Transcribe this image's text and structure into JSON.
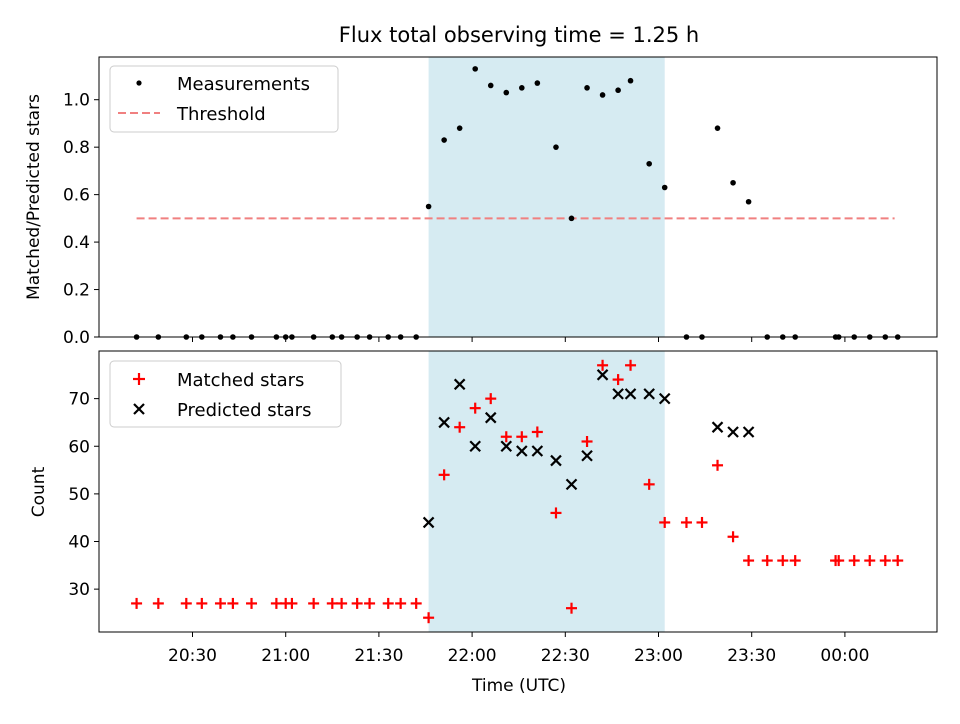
{
  "title": "Flux total observing time = 1.25 h",
  "colors": {
    "band": "#add8e6",
    "threshold": "#f08080",
    "matched": "#ff0000",
    "predicted": "#000000",
    "measurement": "#000000"
  },
  "chart_data": [
    {
      "type": "scatter",
      "ylabel": "Matched/Predicted stars",
      "ylim": [
        0,
        1.18
      ],
      "yticks": [
        "0.0",
        "0.2",
        "0.4",
        "0.6",
        "0.8",
        "1.0"
      ],
      "legend": {
        "placement": "top-left",
        "entries": [
          "Measurements",
          "Threshold"
        ]
      },
      "shaded_interval": [
        "21:46",
        "23:02"
      ],
      "threshold": {
        "name": "Threshold",
        "value": 0.5,
        "x_start": "20:12",
        "x_end": "00:16"
      },
      "series": [
        {
          "name": "Measurements",
          "x": [
            "20:12",
            "20:19",
            "20:28",
            "20:33",
            "20:39",
            "20:43",
            "20:49",
            "20:57",
            "21:00",
            "21:02",
            "21:09",
            "21:15",
            "21:18",
            "21:23",
            "21:27",
            "21:33",
            "21:37",
            "21:42",
            "21:46",
            "21:51",
            "21:56",
            "22:01",
            "22:06",
            "22:11",
            "22:16",
            "22:21",
            "22:27",
            "22:32",
            "22:37",
            "22:42",
            "22:47",
            "22:51",
            "22:57",
            "23:02",
            "23:09",
            "23:14",
            "23:19",
            "23:24",
            "23:29",
            "23:35",
            "23:40",
            "23:44",
            "23:57",
            "23:58",
            "00:03",
            "00:08",
            "00:13",
            "00:17"
          ],
          "y": [
            0,
            0,
            0,
            0,
            0,
            0,
            0,
            0,
            0,
            0,
            0,
            0,
            0,
            0,
            0,
            0,
            0,
            0,
            0.55,
            0.83,
            0.88,
            1.13,
            1.06,
            1.03,
            1.05,
            1.07,
            0.8,
            0.5,
            1.05,
            1.02,
            1.04,
            1.08,
            0.73,
            0.63,
            0,
            0,
            0.88,
            0.65,
            0.57,
            0,
            0,
            0,
            0,
            0,
            0,
            0,
            0,
            0
          ]
        }
      ]
    },
    {
      "type": "scatter",
      "xlabel": "Time (UTC)",
      "ylabel": "Count",
      "ylim": [
        21,
        80
      ],
      "yticks": [
        "30",
        "40",
        "50",
        "60",
        "70"
      ],
      "xticks": [
        "20:30",
        "21:00",
        "21:30",
        "22:00",
        "22:30",
        "23:00",
        "23:30",
        "00:00"
      ],
      "legend": {
        "placement": "top-left",
        "entries": [
          "Matched stars",
          "Predicted stars"
        ]
      },
      "shaded_interval": [
        "21:46",
        "23:02"
      ],
      "series": [
        {
          "name": "Matched stars",
          "marker": "+",
          "x": [
            "20:12",
            "20:19",
            "20:28",
            "20:33",
            "20:39",
            "20:43",
            "20:49",
            "20:57",
            "21:00",
            "21:02",
            "21:09",
            "21:15",
            "21:18",
            "21:23",
            "21:27",
            "21:33",
            "21:37",
            "21:42",
            "21:46",
            "21:51",
            "21:56",
            "22:01",
            "22:06",
            "22:11",
            "22:16",
            "22:21",
            "22:27",
            "22:32",
            "22:37",
            "22:42",
            "22:47",
            "22:51",
            "22:57",
            "23:02",
            "23:09",
            "23:14",
            "23:19",
            "23:24",
            "23:29",
            "23:35",
            "23:40",
            "23:44",
            "23:57",
            "23:58",
            "00:03",
            "00:08",
            "00:13",
            "00:17"
          ],
          "y": [
            27,
            27,
            27,
            27,
            27,
            27,
            27,
            27,
            27,
            27,
            27,
            27,
            27,
            27,
            27,
            27,
            27,
            27,
            24,
            54,
            64,
            68,
            70,
            62,
            62,
            63,
            46,
            26,
            61,
            77,
            74,
            77,
            52,
            44,
            44,
            44,
            56,
            41,
            36,
            36,
            36,
            36,
            36,
            36,
            36,
            36,
            36,
            36
          ]
        },
        {
          "name": "Predicted stars",
          "marker": "x",
          "x": [
            "21:46",
            "21:51",
            "21:56",
            "22:01",
            "22:06",
            "22:11",
            "22:16",
            "22:21",
            "22:27",
            "22:32",
            "22:37",
            "22:42",
            "22:47",
            "22:51",
            "22:57",
            "23:02",
            "23:19",
            "23:24",
            "23:29"
          ],
          "y": [
            44,
            65,
            73,
            60,
            66,
            60,
            59,
            59,
            57,
            52,
            58,
            75,
            71,
            71,
            71,
            70,
            64,
            63,
            63
          ]
        }
      ]
    }
  ]
}
